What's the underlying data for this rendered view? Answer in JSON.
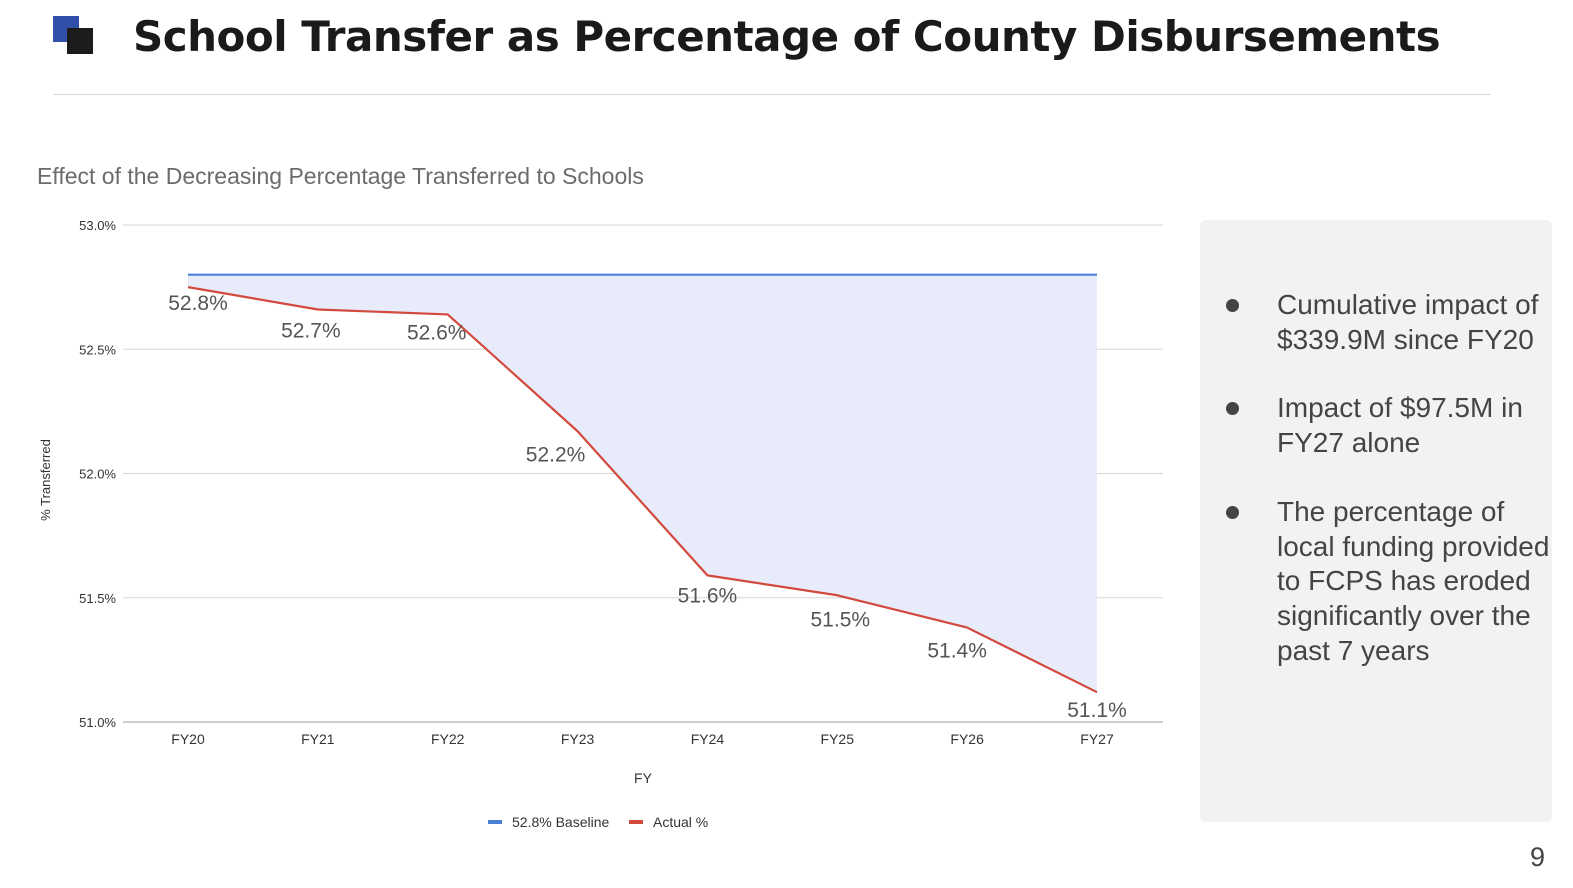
{
  "slide": {
    "title": "School Transfer as Percentage of County Disbursements",
    "page_number": "9",
    "accent_colors": {
      "logo_blue": "#2f4fa8",
      "logo_dark": "#1c1c1c"
    }
  },
  "chart_data": {
    "type": "line",
    "title": "Effect of the Decreasing Percentage Transferred to Schools",
    "xlabel": "FY",
    "ylabel": "% Transferred",
    "categories": [
      "FY20",
      "FY21",
      "FY22",
      "FY23",
      "FY24",
      "FY25",
      "FY26",
      "FY27"
    ],
    "ylim": [
      51.0,
      53.0
    ],
    "y_ticks": [
      51.0,
      51.5,
      52.0,
      52.5,
      53.0
    ],
    "y_tick_labels": [
      "51.0%",
      "51.5%",
      "52.0%",
      "52.5%",
      "53.0%"
    ],
    "grid": true,
    "legend_position": "bottom",
    "shaded_gap": true,
    "series": [
      {
        "name": "52.8% Baseline",
        "color": "#4a7fd6",
        "values": [
          52.8,
          52.8,
          52.8,
          52.8,
          52.8,
          52.8,
          52.8,
          52.8
        ]
      },
      {
        "name": "Actual %",
        "color": "#d2493e",
        "values": [
          52.75,
          52.66,
          52.64,
          52.17,
          51.59,
          51.51,
          51.38,
          51.12
        ],
        "data_labels": [
          "52.8%",
          "52.7%",
          "52.6%",
          "52.2%",
          "51.6%",
          "51.5%",
          "51.4%",
          "51.1%"
        ]
      }
    ],
    "fill_color": "#e8ebfa"
  },
  "sidebar": {
    "bullets": [
      "Cumulative impact of $339.9M since FY20",
      "Impact of $97.5M in FY27 alone",
      "The percentage of local funding provided to FCPS has eroded significantly over the past 7 years"
    ]
  }
}
